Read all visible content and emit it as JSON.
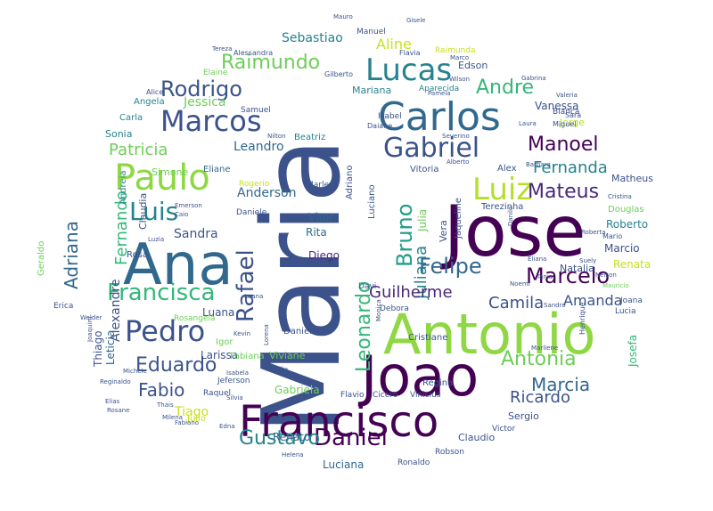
{
  "word_cloud": {
    "words": [
      {
        "text": "Maria",
        "color": "#3b528b"
      },
      {
        "text": "Jose",
        "color": "#440154"
      },
      {
        "text": "Ana",
        "color": "#31688e"
      },
      {
        "text": "Antonio",
        "color": "#8fd744"
      },
      {
        "text": "Joao",
        "color": "#440154"
      },
      {
        "text": "Francisco",
        "color": "#440154"
      },
      {
        "text": "Carlos",
        "color": "#31688e"
      },
      {
        "text": "Paulo",
        "color": "#8fd744"
      },
      {
        "text": "Lucas",
        "color": "#26828e"
      },
      {
        "text": "Marcos",
        "color": "#3b528b"
      },
      {
        "text": "Gabriel",
        "color": "#3b528b"
      },
      {
        "text": "Luiz",
        "color": "#b5de2b"
      },
      {
        "text": "Pedro",
        "color": "#3b528b"
      },
      {
        "text": "Francisca",
        "color": "#35b779"
      },
      {
        "text": "Luis",
        "color": "#26828e"
      },
      {
        "text": "Daniel",
        "color": "#440154"
      },
      {
        "text": "Marcelo",
        "color": "#440154"
      },
      {
        "text": "Rafael",
        "color": "#3b528b"
      },
      {
        "text": "Rodrigo",
        "color": "#3b528b"
      },
      {
        "text": "Raimundo",
        "color": "#6ece58"
      },
      {
        "text": "Antonia",
        "color": "#6ece58"
      },
      {
        "text": "Eduardo",
        "color": "#3b528b"
      },
      {
        "text": "Gustavo",
        "color": "#26828e"
      },
      {
        "text": "Felipe",
        "color": "#31688e"
      },
      {
        "text": "Manoel",
        "color": "#440154"
      },
      {
        "text": "Mateus",
        "color": "#482878"
      },
      {
        "text": "Bruno",
        "color": "#1f9e89"
      },
      {
        "text": "Leonardo",
        "color": "#35b779"
      },
      {
        "text": "Fernando",
        "color": "#35b779"
      },
      {
        "text": "Adriana",
        "color": "#31688e"
      },
      {
        "text": "Fabio",
        "color": "#3b528b"
      },
      {
        "text": "Andre",
        "color": "#35b779"
      },
      {
        "text": "Marcia",
        "color": "#31688e"
      },
      {
        "text": "Juliana",
        "color": "#26828e"
      },
      {
        "text": "Fernanda",
        "color": "#26828e"
      },
      {
        "text": "Patricia",
        "color": "#6ece58"
      },
      {
        "text": "Guilherme",
        "color": "#482878"
      },
      {
        "text": "Camila",
        "color": "#3b528b"
      },
      {
        "text": "Ricardo",
        "color": "#3b528b"
      },
      {
        "text": "Amanda",
        "color": "#3b528b"
      },
      {
        "text": "Aline",
        "color": "#c8e020"
      },
      {
        "text": "Sebastiao",
        "color": "#26828e"
      },
      {
        "text": "Alexandre",
        "color": "#3b528b"
      },
      {
        "text": "Jessica",
        "color": "#6ece58"
      },
      {
        "text": "Leandro",
        "color": "#31688e"
      },
      {
        "text": "Anderson",
        "color": "#31688e"
      },
      {
        "text": "Sandra",
        "color": "#3b528b"
      },
      {
        "text": "Tiago",
        "color": "#c8e020"
      },
      {
        "text": "Leticia",
        "color": "#31688e"
      },
      {
        "text": "Thiago",
        "color": "#3b528b"
      },
      {
        "text": "Roberto",
        "color": "#26828e"
      },
      {
        "text": "Marcio",
        "color": "#3b528b"
      },
      {
        "text": "Renata",
        "color": "#c8e020"
      },
      {
        "text": "Natalia",
        "color": "#3b528b"
      },
      {
        "text": "Diego",
        "color": "#482878"
      },
      {
        "text": "Vitor",
        "color": "#31688e"
      },
      {
        "text": "Rita",
        "color": "#31688e"
      },
      {
        "text": "Luana",
        "color": "#3b528b"
      },
      {
        "text": "Larissa",
        "color": "#3b528b"
      },
      {
        "text": "Renato",
        "color": "#31688e"
      },
      {
        "text": "Luciana",
        "color": "#31688e"
      },
      {
        "text": "Sergio",
        "color": "#3b528b"
      },
      {
        "text": "Claudio",
        "color": "#3b528b"
      },
      {
        "text": "Gabriela",
        "color": "#6ece58"
      },
      {
        "text": "Edson",
        "color": "#3b528b"
      },
      {
        "text": "Mariana",
        "color": "#26828e"
      },
      {
        "text": "Vanessa",
        "color": "#3b528b"
      },
      {
        "text": "Jorge",
        "color": "#b5de2b"
      },
      {
        "text": "Vera",
        "color": "#3b528b"
      },
      {
        "text": "Julia",
        "color": "#6ece58"
      },
      {
        "text": "Jaqueline",
        "color": "#3b528b"
      },
      {
        "text": "Josefa",
        "color": "#35b779"
      },
      {
        "text": "Matheus",
        "color": "#3b528b"
      },
      {
        "text": "Douglas",
        "color": "#6ece58"
      },
      {
        "text": "Alex",
        "color": "#3b528b"
      },
      {
        "text": "Vitoria",
        "color": "#3b528b"
      },
      {
        "text": "Beatriz",
        "color": "#26828e"
      },
      {
        "text": "Eliane",
        "color": "#31688e"
      },
      {
        "text": "Simone",
        "color": "#6ece58"
      },
      {
        "text": "Claudia",
        "color": "#3b528b"
      },
      {
        "text": "Andreia",
        "color": "#26828e"
      },
      {
        "text": "Sonia",
        "color": "#26828e"
      },
      {
        "text": "Carla",
        "color": "#26828e"
      },
      {
        "text": "Angela",
        "color": "#26828e"
      },
      {
        "text": "Samuel",
        "color": "#3b528b"
      },
      {
        "text": "Rogerio",
        "color": "#c8e020"
      },
      {
        "text": "Marlene",
        "color": "#3b528b"
      },
      {
        "text": "Daniele",
        "color": "#3b528b"
      },
      {
        "text": "Adriano",
        "color": "#3b528b"
      },
      {
        "text": "Luciano",
        "color": "#3b528b"
      },
      {
        "text": "Terezinha",
        "color": "#3b528b"
      },
      {
        "text": "Cristiane",
        "color": "#3b528b"
      },
      {
        "text": "Regina",
        "color": "#3b528b"
      },
      {
        "text": "Debora",
        "color": "#3b528b"
      },
      {
        "text": "Davi",
        "color": "#3b528b"
      },
      {
        "text": "Viviane",
        "color": "#6ece58"
      },
      {
        "text": "Daniela",
        "color": "#3b528b"
      },
      {
        "text": "Igor",
        "color": "#6ece58"
      },
      {
        "text": "Fabiana",
        "color": "#6ece58"
      },
      {
        "text": "Jeferson",
        "color": "#3b528b"
      },
      {
        "text": "Rosangela",
        "color": "#6ece58"
      },
      {
        "text": "Raquel",
        "color": "#3b528b"
      },
      {
        "text": "Julio",
        "color": "#c8e020"
      },
      {
        "text": "Flavio",
        "color": "#3b528b"
      },
      {
        "text": "Cicero",
        "color": "#3b528b"
      },
      {
        "text": "Vinicius",
        "color": "#3b528b"
      },
      {
        "text": "Robson",
        "color": "#3b528b"
      },
      {
        "text": "Ronaldo",
        "color": "#3b528b"
      },
      {
        "text": "Victor",
        "color": "#3b528b"
      },
      {
        "text": "Geraldo",
        "color": "#6ece58"
      },
      {
        "text": "Erica",
        "color": "#3b528b"
      },
      {
        "text": "Rosa",
        "color": "#3b528b"
      },
      {
        "text": "Isabel",
        "color": "#3b528b"
      },
      {
        "text": "Daiane",
        "color": "#3b528b"
      },
      {
        "text": "Aparecida",
        "color": "#26828e"
      },
      {
        "text": "Bianca",
        "color": "#3b528b"
      },
      {
        "text": "Sara",
        "color": "#3b528b"
      },
      {
        "text": "Miguel",
        "color": "#3b528b"
      },
      {
        "text": "Lucia",
        "color": "#3b528b"
      },
      {
        "text": "Joana",
        "color": "#3b528b"
      },
      {
        "text": "Henrique",
        "color": "#3b528b"
      },
      {
        "text": "Mario",
        "color": "#3b528b"
      },
      {
        "text": "Elaine",
        "color": "#6ece58"
      },
      {
        "text": "Alice",
        "color": "#3b528b"
      },
      {
        "text": "Manuel",
        "color": "#3b528b"
      },
      {
        "text": "Alessandra",
        "color": "#3b528b"
      },
      {
        "text": "Flavia",
        "color": "#3b528b"
      },
      {
        "text": "Gilberto",
        "color": "#3b528b"
      },
      {
        "text": "Raimunda",
        "color": "#c8e020"
      },
      {
        "text": "Mauro",
        "color": "#3b528b"
      },
      {
        "text": "Gisele",
        "color": "#3b528b"
      },
      {
        "text": "Tereza",
        "color": "#3b528b"
      },
      {
        "text": "Marco",
        "color": "#3b528b"
      },
      {
        "text": "Wilson",
        "color": "#3b528b"
      },
      {
        "text": "Gabrina",
        "color": "#3b528b"
      },
      {
        "text": "Valeria",
        "color": "#3b528b"
      },
      {
        "text": "Laura",
        "color": "#3b528b"
      },
      {
        "text": "Severino",
        "color": "#3b528b"
      },
      {
        "text": "Barbara",
        "color": "#3b528b"
      },
      {
        "text": "Emerson",
        "color": "#3b528b"
      },
      {
        "text": "Caio",
        "color": "#3b528b"
      },
      {
        "text": "Danilo",
        "color": "#3b528b"
      },
      {
        "text": "Cristina",
        "color": "#3b528b"
      },
      {
        "text": "Eliana",
        "color": "#3b528b"
      },
      {
        "text": "Tania",
        "color": "#3b528b"
      },
      {
        "text": "Noemi",
        "color": "#3b528b"
      },
      {
        "text": "Pamela",
        "color": "#3b528b"
      },
      {
        "text": "Monica",
        "color": "#3b528b"
      },
      {
        "text": "Luzia",
        "color": "#3b528b"
      },
      {
        "text": "Thais",
        "color": "#3b528b"
      },
      {
        "text": "Fabiano",
        "color": "#3b528b"
      },
      {
        "text": "Milena",
        "color": "#3b528b"
      },
      {
        "text": "Silvia",
        "color": "#3b528b"
      },
      {
        "text": "Edna",
        "color": "#3b528b"
      },
      {
        "text": "Helena",
        "color": "#3b528b"
      },
      {
        "text": "Welder",
        "color": "#3b528b"
      },
      {
        "text": "Joaquim",
        "color": "#3b528b"
      },
      {
        "text": "Cecilia",
        "color": "#3b528b"
      },
      {
        "text": "Reginaldo",
        "color": "#3b528b"
      },
      {
        "text": "Rosane",
        "color": "#3b528b"
      },
      {
        "text": "Marilene",
        "color": "#3b528b"
      },
      {
        "text": "Michele",
        "color": "#3b528b"
      },
      {
        "text": "Elias",
        "color": "#3b528b"
      },
      {
        "text": "Lorena",
        "color": "#3b528b"
      },
      {
        "text": "Mauricio",
        "color": "#6ece58"
      },
      {
        "text": "Nelson",
        "color": "#3b528b"
      },
      {
        "text": "Nilton",
        "color": "#3b528b"
      },
      {
        "text": "Isabela",
        "color": "#3b528b"
      },
      {
        "text": "Luana",
        "color": "#3b528b"
      },
      {
        "text": "Sandro",
        "color": "#3b528b"
      },
      {
        "text": "Roberta",
        "color": "#3b528b"
      },
      {
        "text": "Kevin",
        "color": "#3b528b"
      },
      {
        "text": "Suely",
        "color": "#3b528b"
      },
      {
        "text": "Alberto",
        "color": "#3b528b"
      }
    ]
  }
}
